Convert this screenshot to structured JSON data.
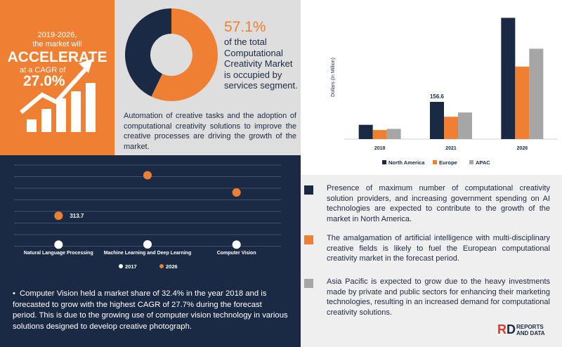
{
  "headline": {
    "period": "2019-2026,",
    "sub": "the market will",
    "big": "ACCELERATE",
    "cagr_label": "at a CAGR of",
    "cagr": "27.0%"
  },
  "pie": {
    "percent": "57.1%",
    "text": "of the total Computational Creativity Market is occupied by services segment.",
    "share": 57.1,
    "colors": {
      "services": "#ef7f32",
      "other": "#1b2a44"
    }
  },
  "grey_paragraph": "Automation of creative tasks and the adoption of computational creativity solutions to improve the creative processes are driving the growth of the market.",
  "chart_data": [
    {
      "type": "bar",
      "ylabel": "Dollars (In Million)",
      "categories": [
        "2018",
        "2021",
        "2026"
      ],
      "series": [
        {
          "name": "North America",
          "color": "#1b2a44",
          "values": [
            60,
            156.6,
            510
          ]
        },
        {
          "name": "Europe",
          "color": "#ef7f32",
          "values": [
            38,
            94,
            305
          ]
        },
        {
          "name": "APAC",
          "color": "#a6a6a6",
          "values": [
            43,
            112,
            380
          ]
        }
      ],
      "data_labels": [
        {
          "series": 0,
          "index": 1,
          "text": "156.6"
        }
      ],
      "ylim": [
        0,
        520
      ],
      "legend": "bottom"
    },
    {
      "type": "scatter",
      "categories": [
        "Natural Language Processing",
        "Machine Learning and Deep Learning",
        "Computer Vision"
      ],
      "series": [
        {
          "name": "2017",
          "color": "#ffffff",
          "values": [
            20,
            22,
            20
          ]
        },
        {
          "name": "2026",
          "color": "#ef7f32",
          "values": [
            313.7,
            725,
            550
          ]
        }
      ],
      "data_labels": [
        {
          "series": 1,
          "index": 0,
          "text": "313.7"
        }
      ],
      "ylim": [
        0,
        900
      ],
      "legend": "bottom"
    }
  ],
  "bullet": "Computer Vision held a market share of 32.4% in the year 2018 and is forecasted to grow with the highest CAGR of 27.7% during the forecast period. This is due to the growing use of computer vision technology in various solutions designed to develop creative photograph.",
  "regions": [
    {
      "color": "#1b2a44",
      "text": "Presence of maximum number of computational creativity solution providers, and increasing government spending on AI technologies are expected to contribute to the growth of the market in North America."
    },
    {
      "color": "#ef7f32",
      "text": "The amalgamation of artificial intelligence with multi-disciplinary creative fields is likely to fuel the European computational creativity market in the forecast period."
    },
    {
      "color": "#a6a6a6",
      "text": "Asia Pacific is expected to grow due to the heavy investments made by private and public sectors for enhancing their marketing technologies, resulting in an increased demand for computational creativity solutions."
    }
  ],
  "logo": {
    "mark": "RD",
    "line1": "REPORTS",
    "line2": "AND DATA"
  }
}
